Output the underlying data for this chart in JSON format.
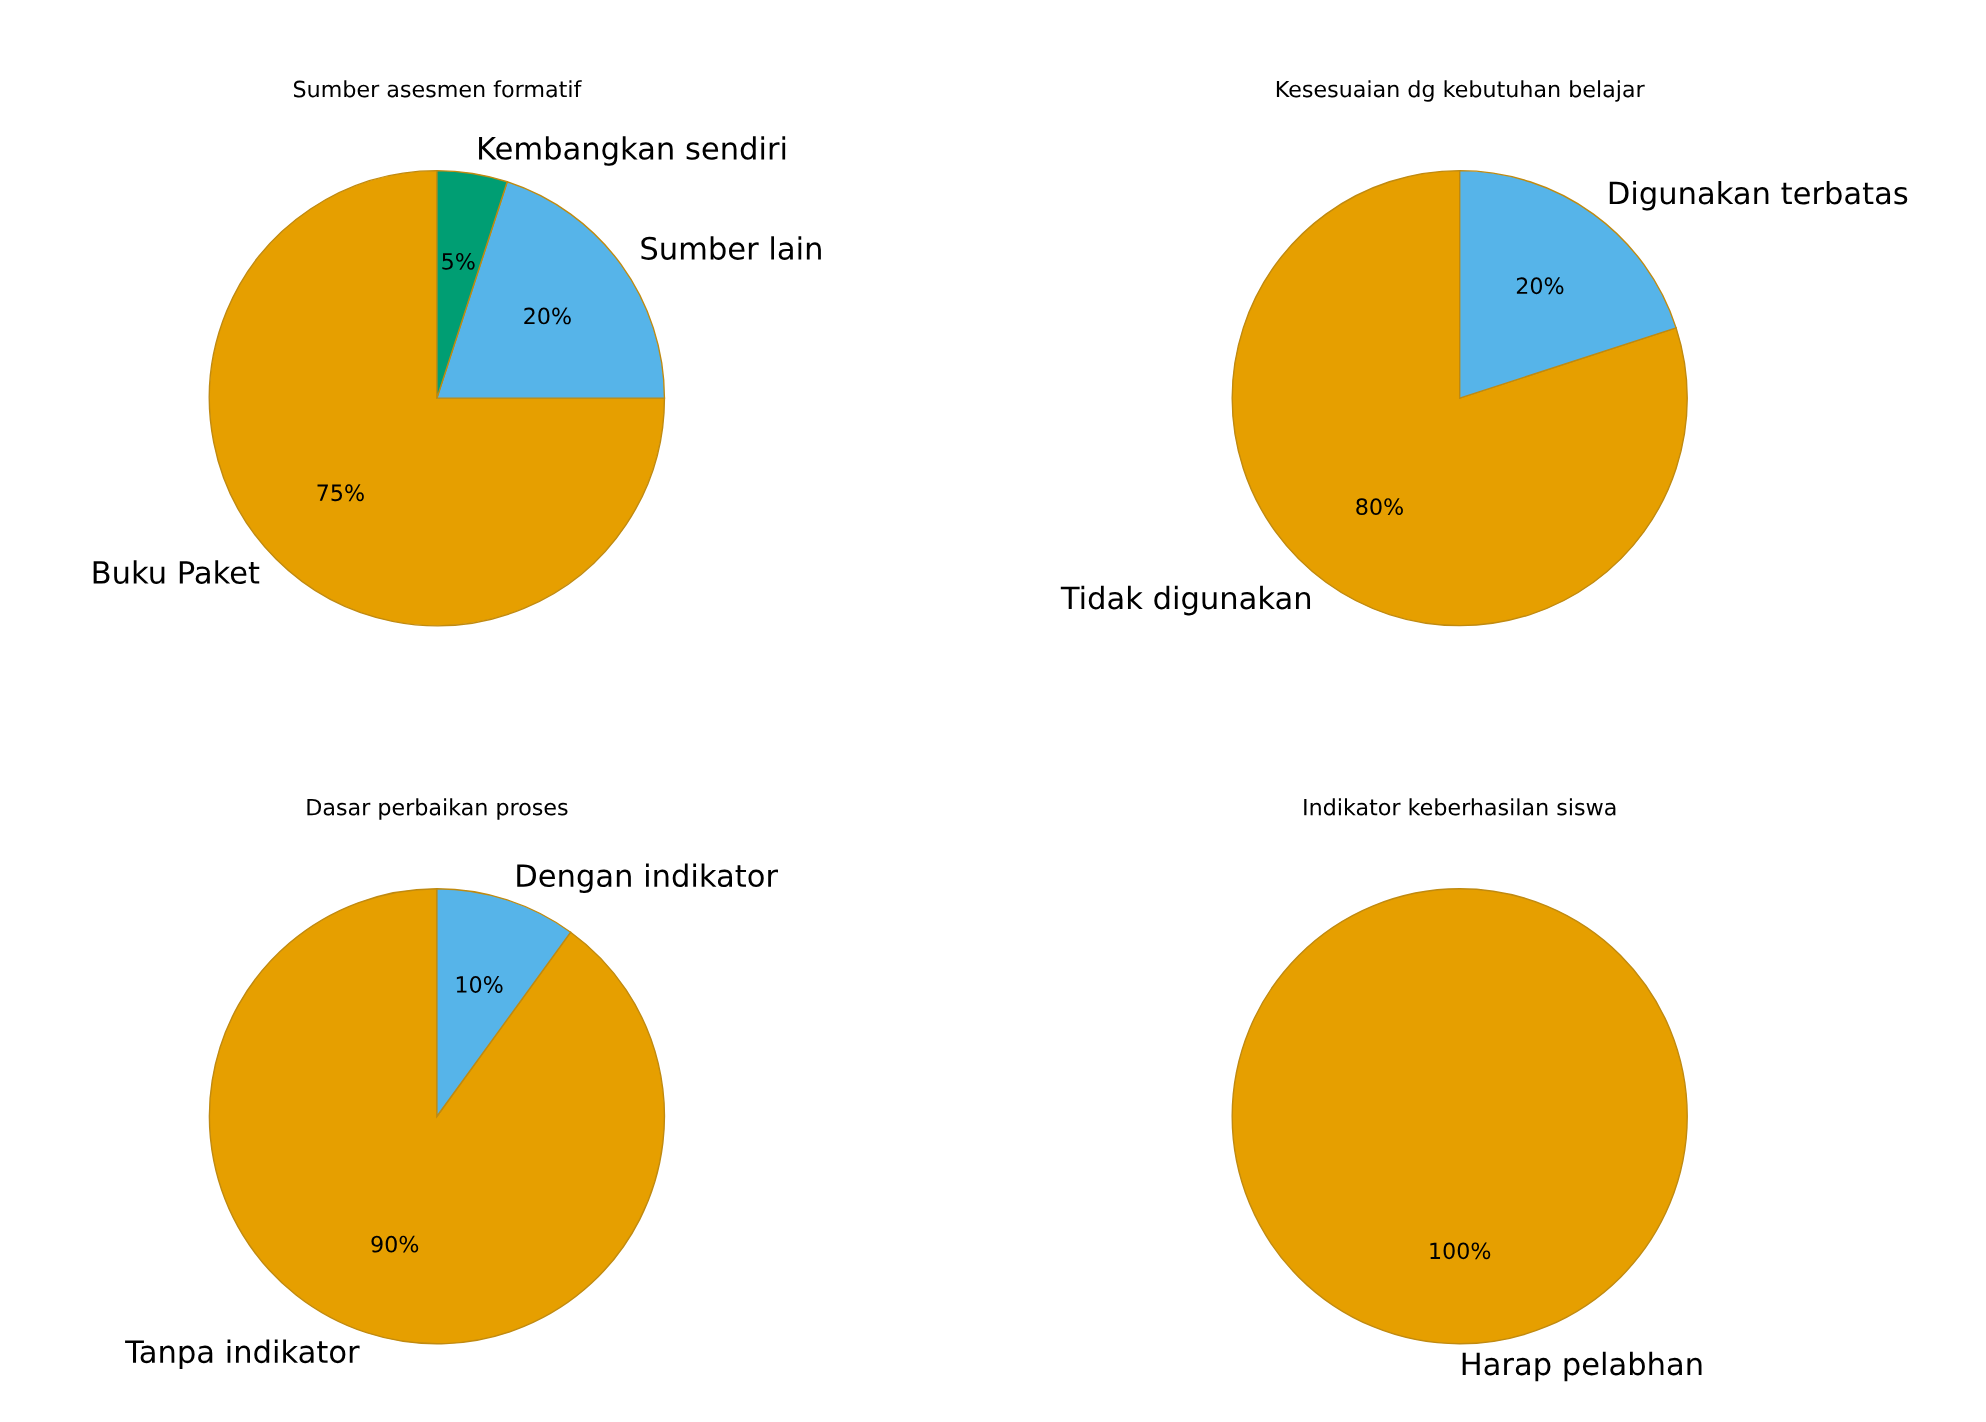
{
  "chart_data": [
    {
      "type": "pie",
      "title": "Sumber asesmen formatif",
      "categories": [
        "Buku Paket",
        "Sumber lain",
        "Kembangkan sendiri"
      ],
      "values": [
        75,
        20,
        5
      ],
      "colors": [
        "#e69f00",
        "#56b4e9",
        "#009e73"
      ],
      "value_labels": [
        "75%",
        "20%",
        "5%"
      ]
    },
    {
      "type": "pie",
      "title": "Kesesuaian dg kebutuhan belajar",
      "categories": [
        "Tidak digunakan",
        "Digunakan terbatas"
      ],
      "values": [
        80,
        20
      ],
      "colors": [
        "#e69f00",
        "#56b4e9"
      ],
      "value_labels": [
        "80%",
        "20%"
      ]
    },
    {
      "type": "pie",
      "title": "Dasar perbaikan proses",
      "categories": [
        "Tanpa indikator",
        "Dengan indikator"
      ],
      "values": [
        90,
        10
      ],
      "colors": [
        "#e69f00",
        "#56b4e9"
      ],
      "value_labels": [
        "90%",
        "10%"
      ]
    },
    {
      "type": "pie",
      "title": "Indikator keberhasilan siswa",
      "categories": [
        "Harap pelabhan"
      ],
      "values": [
        100
      ],
      "colors": [
        "#e69f00"
      ],
      "value_labels": [
        "100%"
      ]
    }
  ]
}
